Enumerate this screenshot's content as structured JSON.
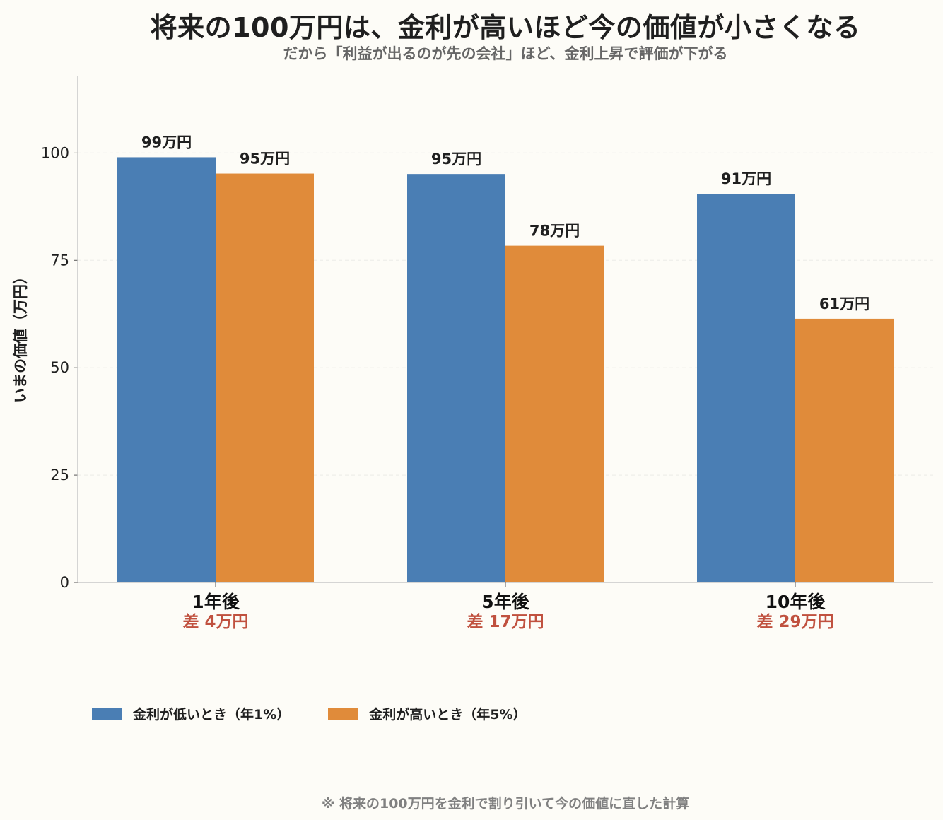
{
  "title": "将来の100万円は、金利が高いほど今の価値が小さくなる",
  "subtitle": "だから「利益が出るのが先の会社」ほど、金利上昇で評価が下がる",
  "footnote": "※ 将来の100万円を金利で割り引いて今の価値に直した計算",
  "colors": {
    "low_rate": "#4a7eb4",
    "high_rate": "#e08b3a",
    "diff_text": "#c0513f",
    "axis": "#c8c8c8",
    "grid": "#eeeeea"
  },
  "chart_data": {
    "type": "bar",
    "title": "将来の100万円は、金利が高いほど今の価値が小さくなる",
    "subtitle": "だから「利益が出るのが先の会社」ほど、金利上昇で評価が下がる",
    "ylabel": "いまの価値（万円）",
    "xlabel": "",
    "ylim": [
      0,
      118
    ],
    "yticks": [
      0,
      25,
      50,
      75,
      100
    ],
    "grid": true,
    "legend_position": "bottom-left",
    "categories": [
      "1年後",
      "5年後",
      "10年後"
    ],
    "category_notes": [
      "差 4万円",
      "差 17万円",
      "差 29万円"
    ],
    "series": [
      {
        "name": "金利が低いとき（年1%）",
        "values": [
          99.0,
          95.1,
          90.5
        ],
        "labels": [
          "99万円",
          "95万円",
          "91万円"
        ]
      },
      {
        "name": "金利が高いとき（年5%）",
        "values": [
          95.2,
          78.4,
          61.4
        ],
        "labels": [
          "95万円",
          "78万円",
          "61万円"
        ]
      }
    ]
  }
}
